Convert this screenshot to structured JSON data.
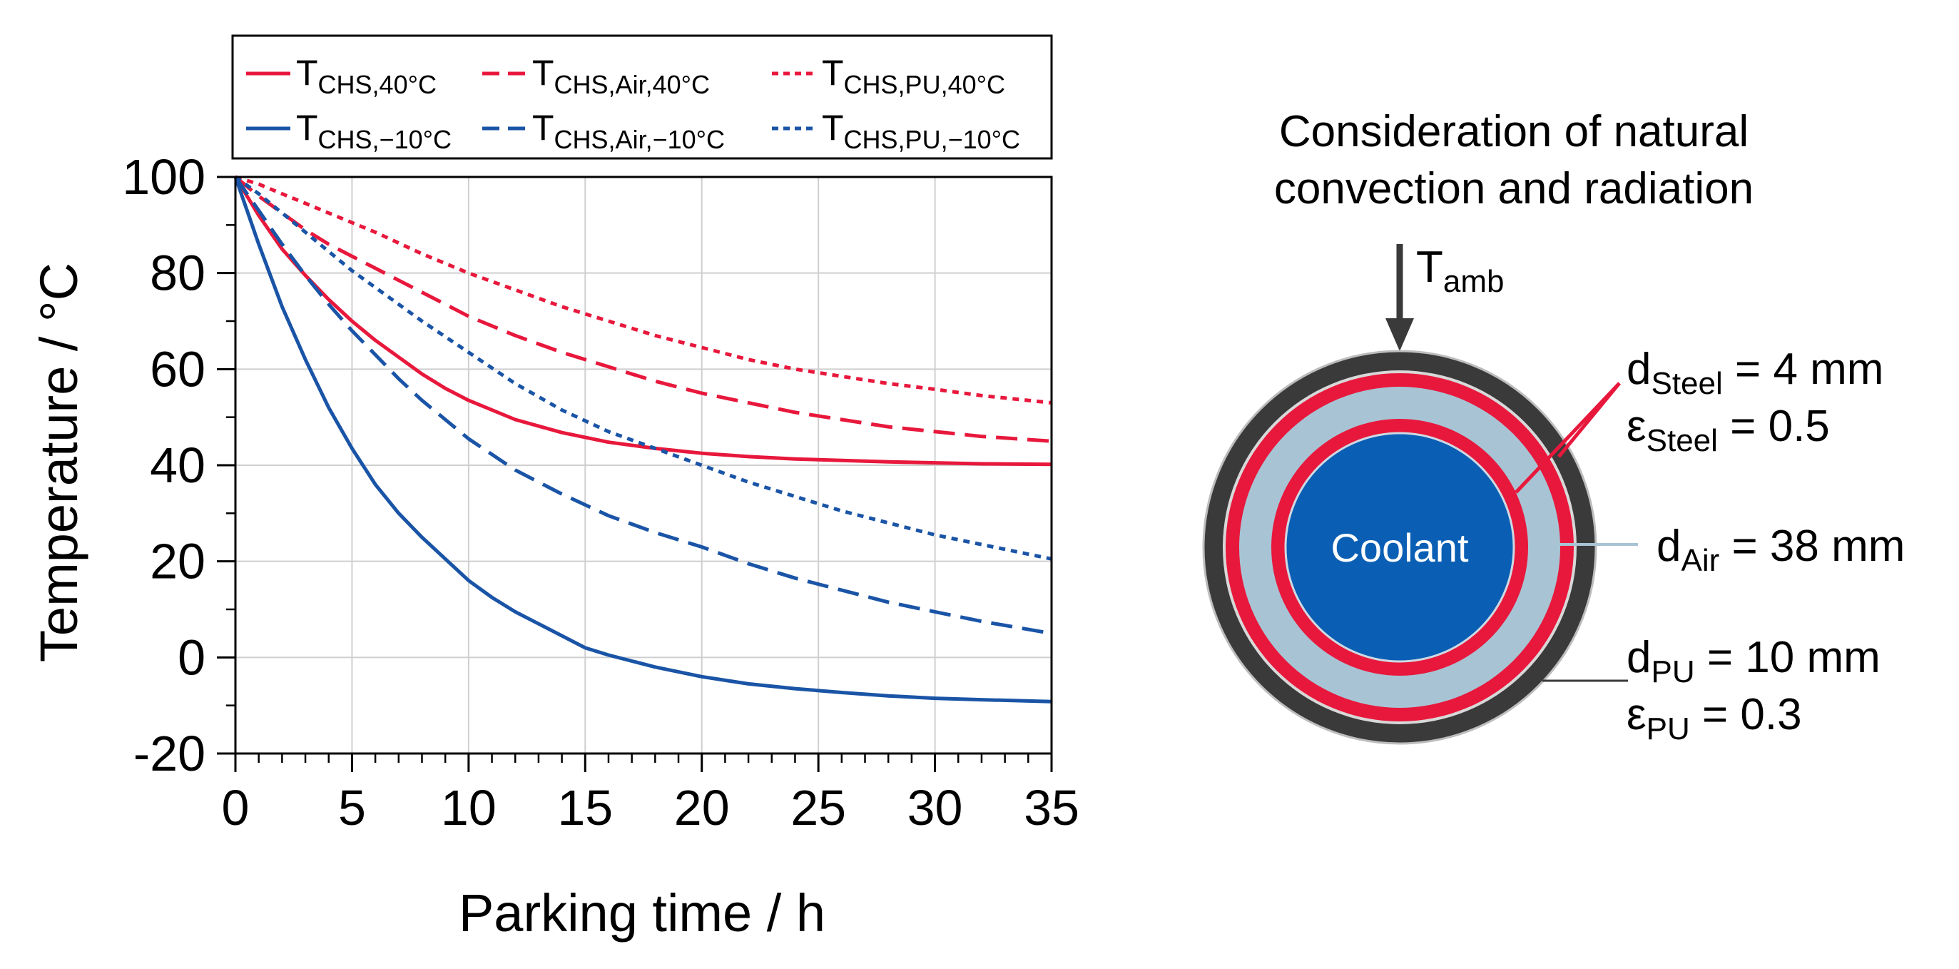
{
  "chart_data": {
    "type": "line",
    "xlabel": "Parking time / h",
    "ylabel": "Temperature / °C",
    "xlim": [
      0,
      35
    ],
    "ylim": [
      -20,
      100
    ],
    "xticks": [
      "0",
      "5",
      "10",
      "15",
      "20",
      "25",
      "30",
      "35"
    ],
    "yticks": [
      "100",
      "80",
      "60",
      "40",
      "20",
      "0",
      "-20"
    ],
    "grid": true,
    "legend_placement": "top",
    "series": [
      {
        "name": "T",
        "sub": "CHS,40°C",
        "color": "#e8183c",
        "dash": "solid",
        "x": [
          0,
          1,
          2,
          3,
          4,
          5,
          6,
          7,
          8,
          9,
          10,
          12,
          14,
          16,
          18,
          20,
          22,
          24,
          26,
          28,
          30,
          32,
          35
        ],
        "y": [
          100,
          92,
          85,
          79.5,
          74.5,
          70,
          66,
          62.5,
          59,
          56,
          53.5,
          49.5,
          46.8,
          44.8,
          43.5,
          42.5,
          41.8,
          41.3,
          41,
          40.7,
          40.5,
          40.3,
          40.2
        ]
      },
      {
        "name": "T",
        "sub": "CHS,Air,40°C",
        "color": "#e8183c",
        "dash": "long",
        "x": [
          0,
          1,
          2,
          3,
          4,
          5,
          6,
          7,
          8,
          9,
          10,
          12,
          14,
          16,
          18,
          20,
          22,
          24,
          26,
          28,
          30,
          32,
          35
        ],
        "y": [
          100,
          96,
          92.5,
          89,
          86,
          83.5,
          81,
          78.5,
          76,
          73.5,
          71,
          67,
          63.5,
          60.5,
          57.5,
          55,
          53,
          51,
          49.5,
          48,
          47,
          46,
          45
        ]
      },
      {
        "name": "T",
        "sub": "CHS,PU,40°C",
        "color": "#e8183c",
        "dash": "dot",
        "x": [
          0,
          1,
          2,
          3,
          4,
          5,
          6,
          8,
          10,
          12,
          14,
          16,
          18,
          20,
          22,
          24,
          26,
          28,
          30,
          32,
          35
        ],
        "y": [
          100,
          98.5,
          96.5,
          94.5,
          92.5,
          90.5,
          88.5,
          84,
          80,
          76.5,
          73,
          70,
          67,
          64.5,
          62,
          60,
          58.5,
          57,
          55.8,
          54.5,
          53
        ]
      },
      {
        "name": "T",
        "sub": "CHS,−10°C",
        "color": "#1a54a6",
        "dash": "solid",
        "x": [
          0,
          1,
          2,
          3,
          4,
          5,
          6,
          7,
          8,
          9,
          10,
          11,
          12,
          13,
          14,
          15,
          16,
          18,
          20,
          22,
          24,
          26,
          28,
          30,
          32,
          35
        ],
        "y": [
          100,
          86,
          73,
          62,
          52,
          43.5,
          36,
          30,
          25,
          20.5,
          16,
          12.5,
          9.5,
          7,
          4.5,
          2,
          0.5,
          -2,
          -4,
          -5.5,
          -6.5,
          -7.3,
          -8,
          -8.5,
          -8.8,
          -9.2
        ]
      },
      {
        "name": "T",
        "sub": "CHS,Air,−10°C",
        "color": "#1a54a6",
        "dash": "long",
        "x": [
          0,
          1,
          2,
          3,
          4,
          5,
          6,
          7,
          8,
          9,
          10,
          12,
          14,
          16,
          18,
          20,
          22,
          24,
          26,
          28,
          30,
          32,
          35
        ],
        "y": [
          100,
          93,
          86,
          79.5,
          73.5,
          68,
          63,
          58,
          53.5,
          49.5,
          45.5,
          39,
          34,
          29.5,
          26,
          23,
          19.5,
          16.5,
          14,
          11.5,
          9.5,
          7.5,
          5
        ]
      },
      {
        "name": "T",
        "sub": "CHS,PU,−10°C",
        "color": "#1a54a6",
        "dash": "dot",
        "x": [
          0,
          1,
          2,
          3,
          4,
          5,
          6,
          8,
          10,
          12,
          14,
          16,
          18,
          20,
          22,
          24,
          26,
          28,
          30,
          32,
          35
        ],
        "y": [
          100,
          96.5,
          92.5,
          88.5,
          84.5,
          80.5,
          77,
          70,
          63.5,
          57,
          51.5,
          47,
          43.5,
          40,
          36.5,
          33.5,
          30.5,
          28,
          25.5,
          23.5,
          20.5
        ]
      }
    ]
  },
  "diagram": {
    "title_line1": "Consideration of natural",
    "title_line2": "convection and radiation",
    "arrow_label": {
      "main": "T",
      "sub": "amb"
    },
    "center_label": "Coolant",
    "labels": [
      {
        "main": "d",
        "sub": "Steel",
        "rest": " = 4 mm"
      },
      {
        "main": "ε",
        "sub": "Steel",
        "rest": " = 0.5"
      },
      {
        "main": "d",
        "sub": "Air",
        "rest": " = 38 mm"
      },
      {
        "main": "d",
        "sub": "PU",
        "rest": " = 10 mm"
      },
      {
        "main": "ε",
        "sub": "PU",
        "rest": " = 0.3"
      }
    ],
    "colors": {
      "steel": "#e8183c",
      "air": "#a8c4d4",
      "pu": "#3a3a3a",
      "coolant": "#0a5fb5",
      "arrow": "#3a3a3a"
    }
  }
}
